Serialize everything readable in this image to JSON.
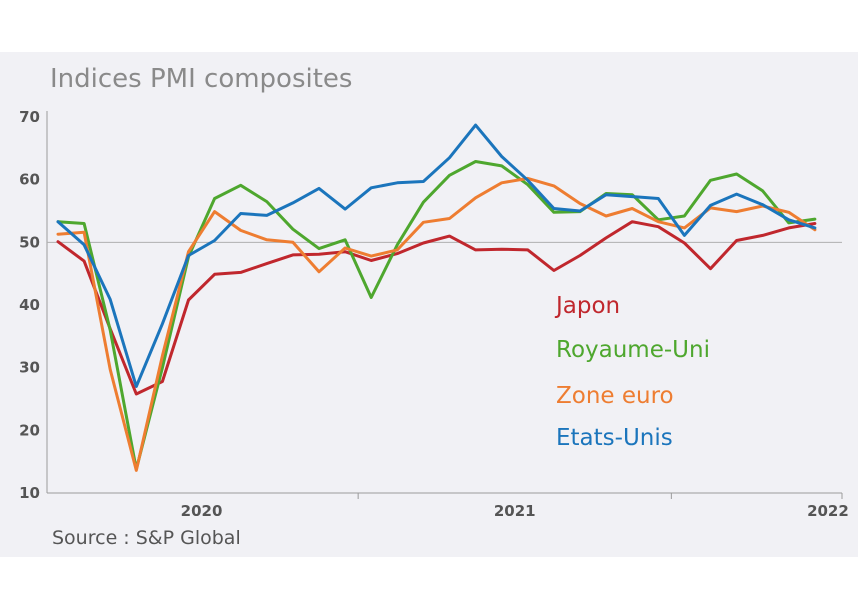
{
  "title": "Indices PMI composites",
  "source": "Source :  S&P Global",
  "chart_data": {
    "type": "line",
    "title": "Indices PMI composites",
    "xlabel": "",
    "ylabel": "",
    "ylim": [
      10,
      70
    ],
    "yticks": [
      10,
      20,
      30,
      40,
      50,
      60,
      70
    ],
    "reference_line": 50,
    "x_start": "2020-01",
    "x_end": "2022-06",
    "x_labels": [
      {
        "label": "2020",
        "month": "2020-07"
      },
      {
        "label": "2021",
        "month": "2021-07"
      },
      {
        "label": "2022",
        "month": "2022-07"
      }
    ],
    "grid": false,
    "legend_position": "inside-right",
    "series": [
      {
        "name": "Japon",
        "color": "#c0272d",
        "values": [
          50.1,
          47.0,
          36.2,
          25.8,
          27.8,
          40.8,
          44.9,
          45.2,
          46.6,
          48.0,
          48.1,
          48.5,
          47.1,
          48.2,
          49.9,
          51.0,
          48.8,
          48.9,
          48.8,
          45.5,
          47.9,
          50.7,
          53.3,
          52.5,
          49.9,
          45.8,
          50.3,
          51.1,
          52.3,
          53.0
        ]
      },
      {
        "name": "Royaume-Uni",
        "color": "#4ea72e",
        "values": [
          53.3,
          53.0,
          36.0,
          13.8,
          30.0,
          47.7,
          57.0,
          59.1,
          56.5,
          52.1,
          49.0,
          50.4,
          41.2,
          49.6,
          56.4,
          60.7,
          62.9,
          62.2,
          59.2,
          54.8,
          54.9,
          57.8,
          57.6,
          53.6,
          54.2,
          59.9,
          60.9,
          58.2,
          53.1,
          53.7
        ]
      },
      {
        "name": "Zone euro",
        "color": "#ee7d31",
        "values": [
          51.3,
          51.6,
          29.7,
          13.6,
          31.9,
          48.5,
          54.9,
          51.9,
          50.4,
          50.0,
          45.3,
          49.1,
          47.8,
          48.8,
          53.2,
          53.8,
          57.1,
          59.5,
          60.2,
          59.0,
          56.2,
          54.2,
          55.4,
          53.3,
          52.3,
          55.5,
          54.9,
          55.8,
          54.8,
          52.0
        ]
      },
      {
        "name": "Etats-Unis",
        "color": "#1b75bc",
        "values": [
          53.3,
          49.6,
          40.9,
          27.0,
          37.0,
          47.9,
          50.3,
          54.6,
          54.3,
          56.3,
          58.6,
          55.3,
          58.7,
          59.5,
          59.7,
          63.5,
          68.7,
          63.7,
          59.9,
          55.4,
          55.0,
          57.6,
          57.3,
          57.0,
          51.1,
          55.9,
          57.7,
          56.0,
          53.6,
          52.3
        ]
      }
    ]
  }
}
